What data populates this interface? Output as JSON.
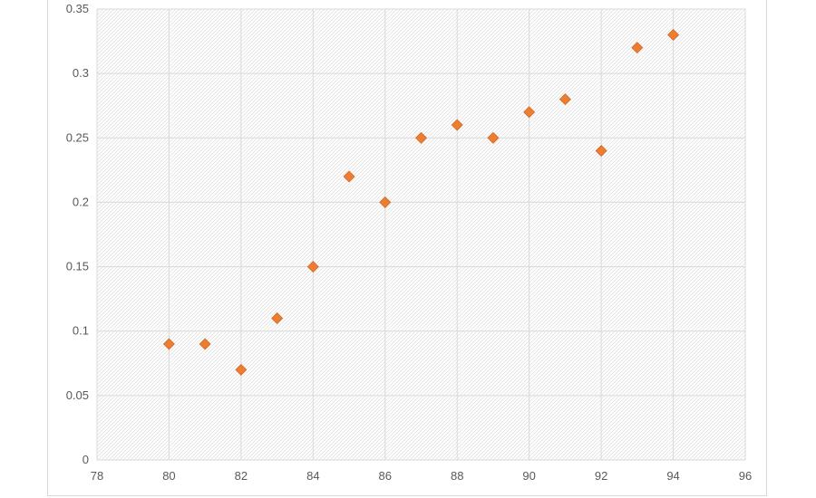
{
  "chart_data": {
    "type": "scatter",
    "title": "",
    "xlabel": "",
    "ylabel": "",
    "xlim": [
      78,
      96
    ],
    "ylim": [
      0,
      0.35
    ],
    "x_ticks": [
      "78",
      "80",
      "82",
      "84",
      "86",
      "88",
      "90",
      "92",
      "94",
      "96"
    ],
    "y_ticks": [
      "0",
      "0.05",
      "0.1",
      "0.15",
      "0.2",
      "0.25",
      "0.3",
      "0.35"
    ],
    "grid": true,
    "legend": "none",
    "series": [
      {
        "marker": "diamond",
        "color": "#ed7d31",
        "x": [
          80,
          81,
          82,
          83,
          84,
          85,
          86,
          87,
          88,
          89,
          90,
          91,
          92,
          93,
          94
        ],
        "y": [
          0.09,
          0.09,
          0.07,
          0.11,
          0.15,
          0.22,
          0.2,
          0.25,
          0.26,
          0.25,
          0.27,
          0.28,
          0.24,
          0.32,
          0.33
        ]
      }
    ]
  }
}
